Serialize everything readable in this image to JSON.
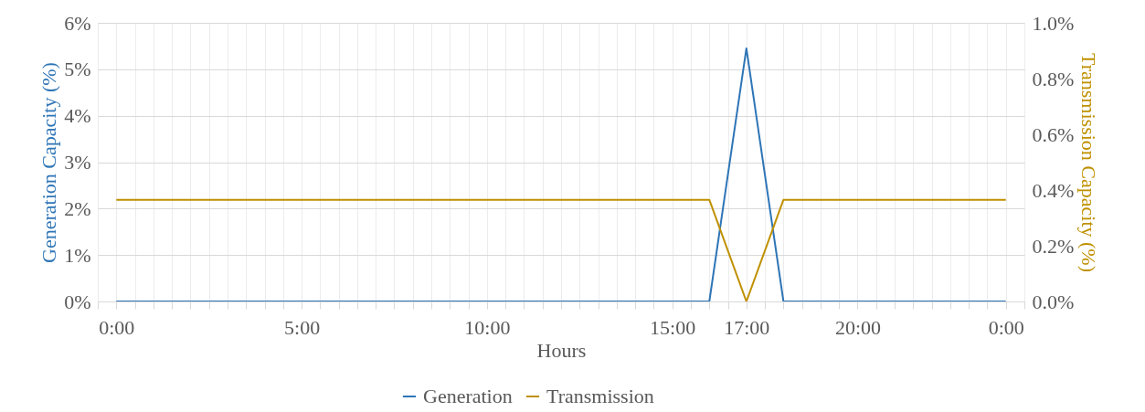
{
  "chart_data": {
    "type": "line",
    "xlabel": "Hours",
    "ylabel": "Generation Capacity (%)",
    "y2label": "Transmission Capacity (%)",
    "x": [
      0,
      1,
      2,
      3,
      4,
      5,
      6,
      7,
      8,
      9,
      10,
      11,
      12,
      13,
      14,
      15,
      16,
      17,
      18,
      19,
      20,
      21,
      22,
      23,
      24
    ],
    "series": [
      {
        "name": "Generation",
        "color": "#2e75b6",
        "values": [
          0,
          0,
          0,
          0,
          0,
          0,
          0,
          0,
          0,
          0,
          0,
          0,
          0,
          0,
          0,
          0,
          0,
          5.45,
          0,
          0,
          0,
          0,
          0,
          0,
          0
        ]
      },
      {
        "name": "Transmission",
        "color": "#bf9000",
        "axis": "y2",
        "values": [
          0.365,
          0.365,
          0.365,
          0.365,
          0.365,
          0.365,
          0.365,
          0.365,
          0.365,
          0.365,
          0.365,
          0.365,
          0.365,
          0.365,
          0.365,
          0.365,
          0.365,
          0,
          0.365,
          0.365,
          0.365,
          0.365,
          0.365,
          0.365,
          0.365
        ]
      }
    ],
    "xlim": [
      -0.5,
      24.5
    ],
    "xticks": [
      {
        "value": -0.5,
        "label": null
      },
      {
        "value": 0,
        "label": "0:00"
      },
      {
        "value": 0.5,
        "label": null
      },
      {
        "value": 1,
        "label": null
      },
      {
        "value": 1.5,
        "label": null
      },
      {
        "value": 2,
        "label": null
      },
      {
        "value": 2.5,
        "label": null
      },
      {
        "value": 3,
        "label": null
      },
      {
        "value": 3.5,
        "label": null
      },
      {
        "value": 4,
        "label": null
      },
      {
        "value": 4.5,
        "label": null
      },
      {
        "value": 5,
        "label": "5:00"
      },
      {
        "value": 5.5,
        "label": null
      },
      {
        "value": 6,
        "label": null
      },
      {
        "value": 6.5,
        "label": null
      },
      {
        "value": 7,
        "label": null
      },
      {
        "value": 7.5,
        "label": null
      },
      {
        "value": 8,
        "label": null
      },
      {
        "value": 8.5,
        "label": null
      },
      {
        "value": 9,
        "label": null
      },
      {
        "value": 9.5,
        "label": null
      },
      {
        "value": 10,
        "label": "10:00"
      },
      {
        "value": 10.5,
        "label": null
      },
      {
        "value": 11,
        "label": null
      },
      {
        "value": 11.5,
        "label": null
      },
      {
        "value": 12,
        "label": null
      },
      {
        "value": 12.5,
        "label": null
      },
      {
        "value": 13,
        "label": null
      },
      {
        "value": 13.5,
        "label": null
      },
      {
        "value": 14,
        "label": null
      },
      {
        "value": 14.5,
        "label": null
      },
      {
        "value": 15,
        "label": "15:00"
      },
      {
        "value": 15.5,
        "label": null
      },
      {
        "value": 16,
        "label": null
      },
      {
        "value": 16.5,
        "label": null
      },
      {
        "value": 17,
        "label": "17:00"
      },
      {
        "value": 17.5,
        "label": null
      },
      {
        "value": 18,
        "label": null
      },
      {
        "value": 18.5,
        "label": null
      },
      {
        "value": 19,
        "label": null
      },
      {
        "value": 19.5,
        "label": null
      },
      {
        "value": 20,
        "label": "20:00"
      },
      {
        "value": 20.5,
        "label": null
      },
      {
        "value": 21,
        "label": null
      },
      {
        "value": 21.5,
        "label": null
      },
      {
        "value": 22,
        "label": null
      },
      {
        "value": 22.5,
        "label": null
      },
      {
        "value": 23,
        "label": null
      },
      {
        "value": 23.5,
        "label": null
      },
      {
        "value": 24,
        "label": "0:00"
      },
      {
        "value": 24.5,
        "label": null
      }
    ],
    "ylim": [
      0,
      6
    ],
    "yticks": [
      {
        "value": 0,
        "label": "0%"
      },
      {
        "value": 1,
        "label": "1%"
      },
      {
        "value": 2,
        "label": "2%"
      },
      {
        "value": 3,
        "label": "3%"
      },
      {
        "value": 4,
        "label": "4%"
      },
      {
        "value": 5,
        "label": "5%"
      },
      {
        "value": 6,
        "label": "6%"
      }
    ],
    "y2lim": [
      0,
      1
    ],
    "y2ticks": [
      {
        "value": 0,
        "label": "0.0%"
      },
      {
        "value": 0.2,
        "label": "0.2%"
      },
      {
        "value": 0.4,
        "label": "0.4%"
      },
      {
        "value": 0.6,
        "label": "0.6%"
      },
      {
        "value": 0.8,
        "label": "0.8%"
      },
      {
        "value": 1,
        "label": "1.0%"
      }
    ],
    "grid": true,
    "legend": "bottom",
    "line_style": "solid"
  }
}
